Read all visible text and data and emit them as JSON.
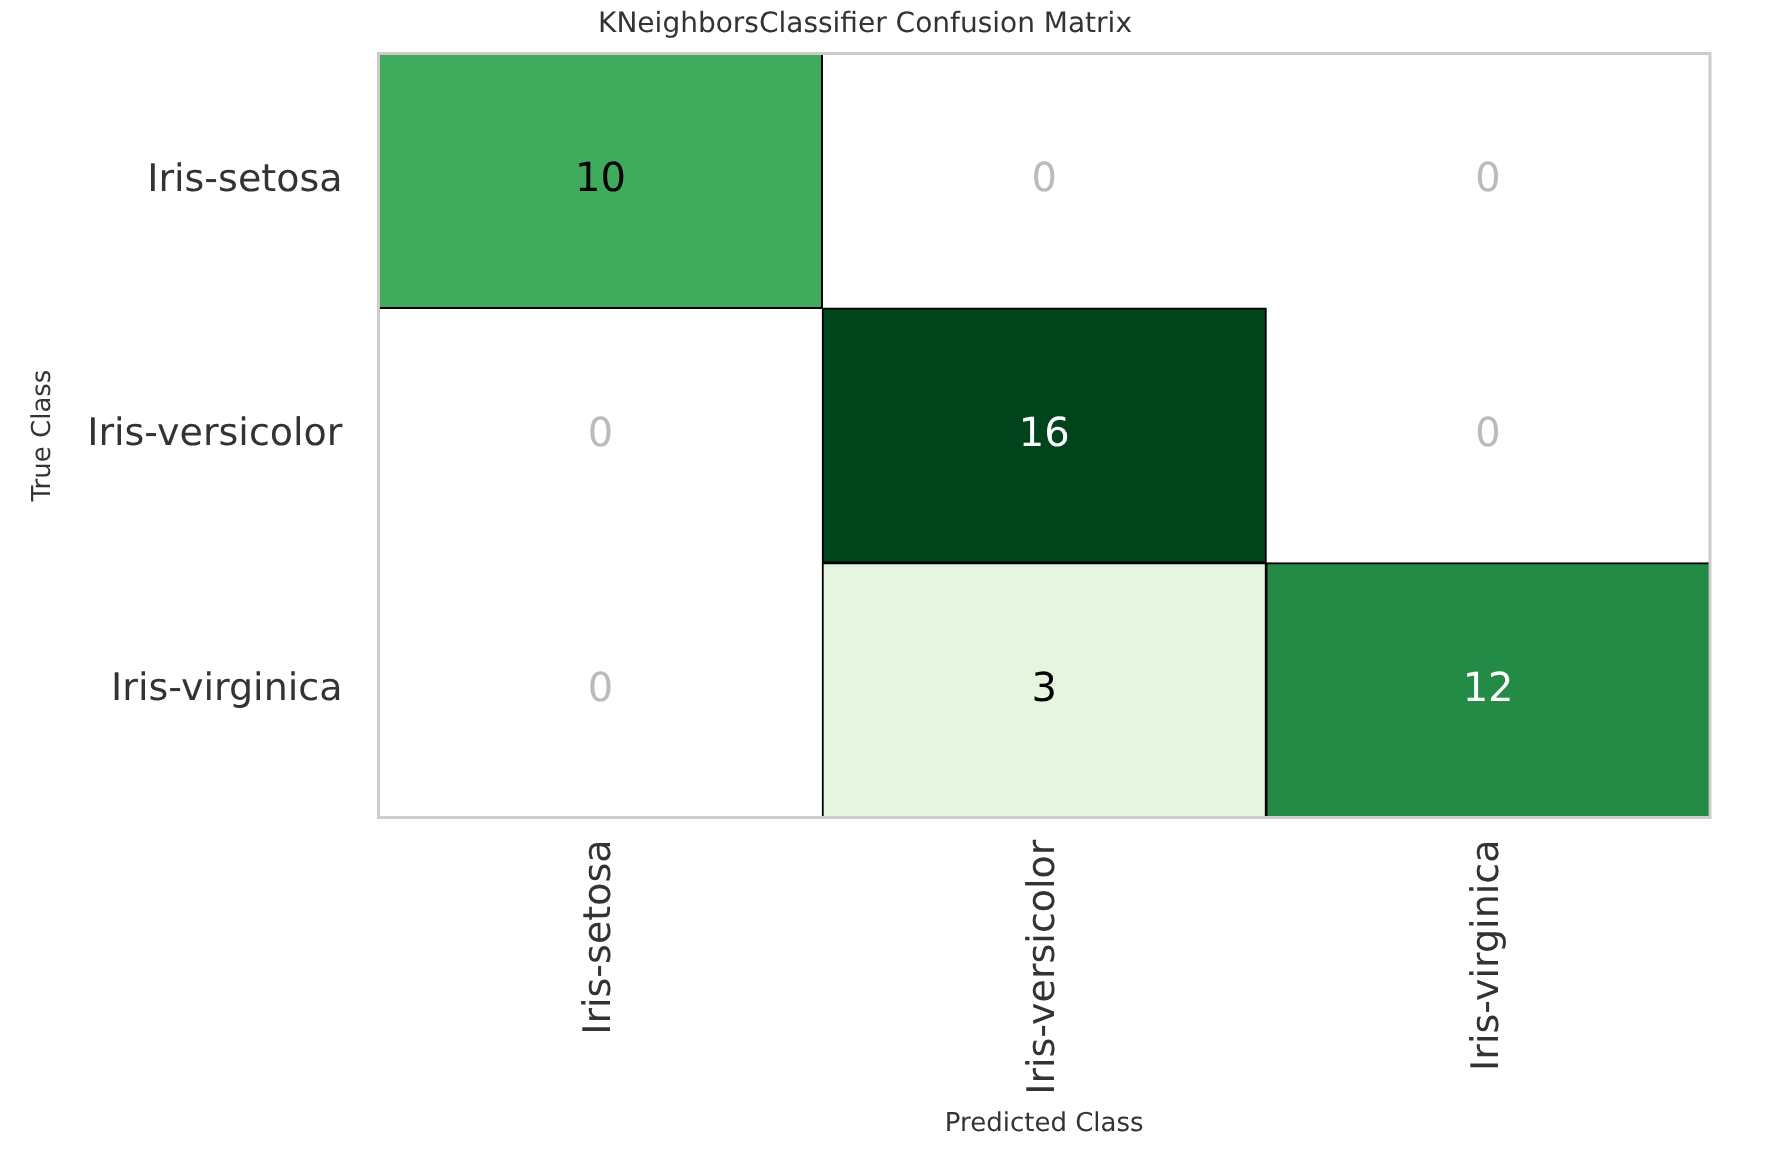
{
  "chart_data": {
    "type": "heatmap",
    "title": "KNeighborsClassifier Confusion Matrix",
    "xlabel": "Predicted Class",
    "ylabel": "True Class",
    "categories": [
      "Iris-setosa",
      "Iris-versicolor",
      "Iris-virginica"
    ],
    "y_categories": [
      "Iris-setosa",
      "Iris-versicolor",
      "Iris-virginica"
    ],
    "cells": [
      [
        10,
        0,
        0
      ],
      [
        0,
        16,
        0
      ],
      [
        0,
        3,
        12
      ]
    ],
    "colors": [
      [
        "#41ab5d",
        "#ffffff",
        "#ffffff"
      ],
      [
        "#ffffff",
        "#00441b",
        "#ffffff"
      ],
      [
        "#ffffff",
        "#e5f5e0",
        "#238b45"
      ]
    ],
    "data_labels": true,
    "grid": false,
    "legend": false
  }
}
